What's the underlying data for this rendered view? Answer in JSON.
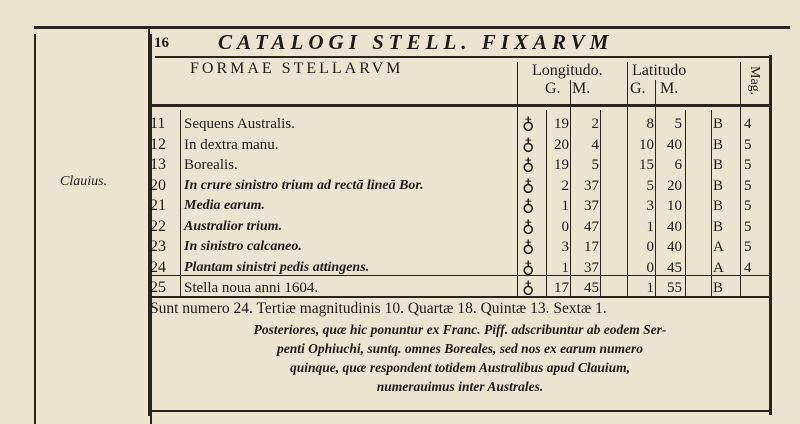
{
  "page_number": "16",
  "running_title": "CATALOGI STELL. FIXARVM",
  "margin_note": "Clauius.",
  "header": {
    "formae": "FORMAE STELLARVM",
    "longitudo": "Longitudo.",
    "latitudo": "Latitudo",
    "long_g": "G.",
    "long_m": "M.",
    "lat_g": "G.",
    "lat_m": "M.",
    "mag": "Mag."
  },
  "rows": [
    {
      "num": "11",
      "name": "Sequens Australis.",
      "italic": false,
      "sym": "♁",
      "long_g": "19",
      "long_m": "2",
      "lat_g": "8",
      "lat_m": "5",
      "cls": "B",
      "mag": "4"
    },
    {
      "num": "12",
      "name": "In dextra manu.",
      "italic": false,
      "sym": "♁",
      "long_g": "20",
      "long_m": "4",
      "lat_g": "10",
      "lat_m": "40",
      "cls": "B",
      "mag": "5"
    },
    {
      "num": "13",
      "name": "Borealis.",
      "italic": false,
      "sym": "♁",
      "long_g": "19",
      "long_m": "5",
      "lat_g": "15",
      "lat_m": "6",
      "cls": "B",
      "mag": "5"
    },
    {
      "num": "20",
      "name": "In crure sinistro trium ad rectā lineā Bor.",
      "italic": true,
      "sym": "♁",
      "long_g": "2",
      "long_m": "37",
      "lat_g": "5",
      "lat_m": "20",
      "cls": "B",
      "mag": "5"
    },
    {
      "num": "21",
      "name": "Media earum.",
      "italic": true,
      "sym": "♁",
      "long_g": "1",
      "long_m": "37",
      "lat_g": "3",
      "lat_m": "10",
      "cls": "B",
      "mag": "5"
    },
    {
      "num": "22",
      "name": "Australior trium.",
      "italic": true,
      "sym": "♁",
      "long_g": "0",
      "long_m": "47",
      "lat_g": "1",
      "lat_m": "40",
      "cls": "B",
      "mag": "5"
    },
    {
      "num": "23",
      "name": "In sinistro calcaneo.",
      "italic": true,
      "sym": "♁",
      "long_g": "3",
      "long_m": "17",
      "lat_g": "0",
      "lat_m": "40",
      "cls": "A",
      "mag": "5"
    },
    {
      "num": "24",
      "name": "Plantam sinistri pedis attingens.",
      "italic": true,
      "sym": "♁",
      "long_g": "1",
      "long_m": "37",
      "lat_g": "0",
      "lat_m": "45",
      "cls": "A",
      "mag": "4"
    },
    {
      "num": "25",
      "name": "Stella noua anni 1604.",
      "italic": false,
      "sym": "♁",
      "long_g": "17",
      "long_m": "45",
      "lat_g": "1",
      "lat_m": "55",
      "cls": "B",
      "mag": ""
    }
  ],
  "summary": "Sunt numero 24. Tertiæ magnitudinis 10. Quartæ 18. Quintæ 13. Sextæ 1.",
  "note_lines": [
    "Posteriores, quæ hic ponuntur ex Franc. Piff. adscribuntur ab eodem Ser-",
    "penti Ophiuchi, suntq. omnes Boreales, sed nos ex earum numero",
    "quinque, quæ respondent totidem Australibus apud Clauium,",
    "numerauimus inter Australes."
  ]
}
